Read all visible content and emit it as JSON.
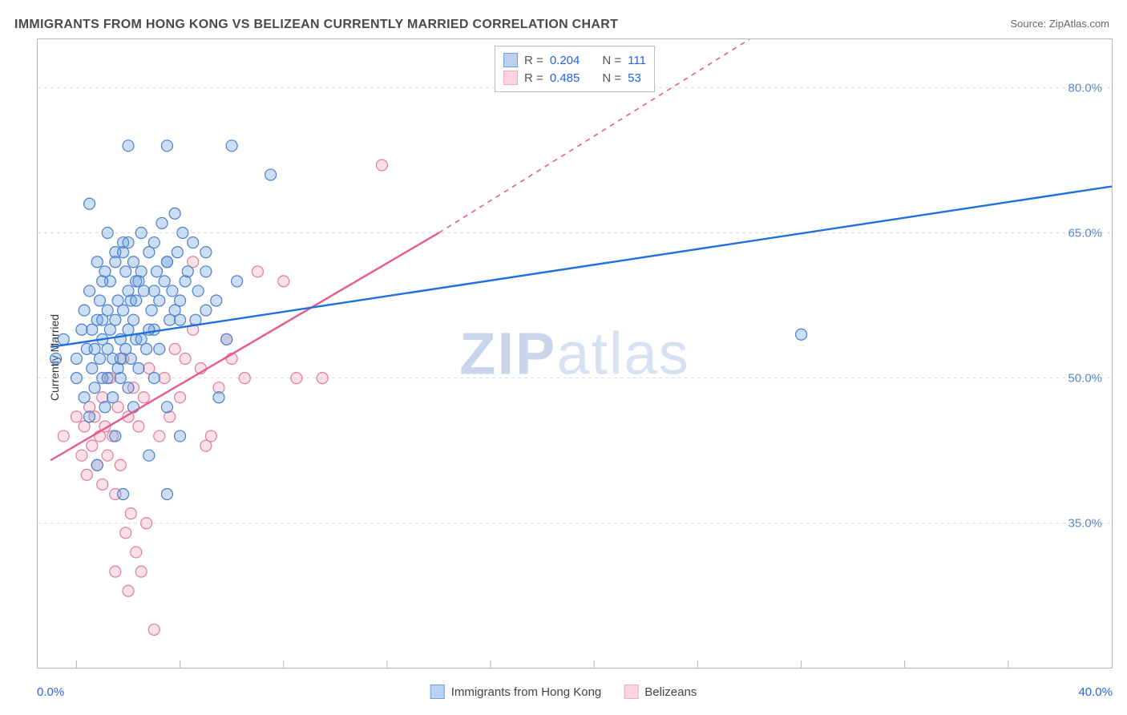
{
  "title": "IMMIGRANTS FROM HONG KONG VS BELIZEAN CURRENTLY MARRIED CORRELATION CHART",
  "source": "Source: ZipAtlas.com",
  "watermark": {
    "bold": "ZIP",
    "light": "atlas"
  },
  "yaxis": {
    "label": "Currently Married"
  },
  "xaxis": {
    "min_label": "0.0%",
    "max_label": "40.0%"
  },
  "chart": {
    "type": "scatter",
    "background_color": "#ffffff",
    "grid_color": "#d9d9d9",
    "axis_color": "#b6b6b6",
    "xlim": [
      -1.5,
      40.0
    ],
    "ylim": [
      20.0,
      85.0
    ],
    "yticks": [
      35.0,
      50.0,
      65.0,
      80.0
    ],
    "ytick_labels": [
      "35.0%",
      "50.0%",
      "65.0%",
      "80.0%"
    ],
    "ytick_color": "#5b86c7",
    "xticks": [
      0,
      4,
      8,
      12,
      16,
      20,
      24,
      28,
      32,
      36
    ],
    "marker_radius": 7,
    "marker_fill_opacity": 0.35,
    "marker_stroke_width": 1.2,
    "series": [
      {
        "name": "Immigrants from Hong Kong",
        "color": "#6ca0e0",
        "stroke": "#4a7fc9",
        "line_color": "#1f6fe0",
        "r": 0.204,
        "n": 111,
        "trend": {
          "x1": -1.0,
          "y1": 53.2,
          "x2": 40.0,
          "y2": 69.8
        },
        "points": [
          [
            -0.8,
            52
          ],
          [
            -0.5,
            54
          ],
          [
            0,
            50
          ],
          [
            0,
            52
          ],
          [
            0.2,
            55
          ],
          [
            0.3,
            48
          ],
          [
            0.3,
            57
          ],
          [
            0.4,
            53
          ],
          [
            0.5,
            59
          ],
          [
            0.5,
            46
          ],
          [
            0.6,
            51
          ],
          [
            0.6,
            55
          ],
          [
            0.7,
            53
          ],
          [
            0.7,
            49
          ],
          [
            0.8,
            62
          ],
          [
            0.8,
            56
          ],
          [
            0.9,
            52
          ],
          [
            0.9,
            58
          ],
          [
            1.0,
            50
          ],
          [
            1.0,
            54
          ],
          [
            1.1,
            61
          ],
          [
            1.1,
            47
          ],
          [
            1.2,
            57
          ],
          [
            1.2,
            53
          ],
          [
            1.3,
            55
          ],
          [
            1.3,
            60
          ],
          [
            1.4,
            52
          ],
          [
            1.4,
            48
          ],
          [
            1.5,
            63
          ],
          [
            1.5,
            56
          ],
          [
            1.6,
            51
          ],
          [
            1.6,
            58
          ],
          [
            1.7,
            54
          ],
          [
            1.7,
            50
          ],
          [
            1.8,
            64
          ],
          [
            1.8,
            57
          ],
          [
            1.9,
            53
          ],
          [
            1.9,
            61
          ],
          [
            2.0,
            55
          ],
          [
            2.0,
            49
          ],
          [
            2.1,
            58
          ],
          [
            2.1,
            52
          ],
          [
            2.2,
            62
          ],
          [
            2.2,
            56
          ],
          [
            2.3,
            60
          ],
          [
            2.3,
            54
          ],
          [
            2.4,
            51
          ],
          [
            2.5,
            65
          ],
          [
            2.6,
            59
          ],
          [
            2.7,
            53
          ],
          [
            2.8,
            63
          ],
          [
            2.9,
            57
          ],
          [
            3.0,
            64
          ],
          [
            3.0,
            55
          ],
          [
            3.1,
            61
          ],
          [
            3.2,
            58
          ],
          [
            3.3,
            66
          ],
          [
            3.4,
            60
          ],
          [
            3.5,
            62
          ],
          [
            3.6,
            56
          ],
          [
            3.7,
            59
          ],
          [
            3.8,
            67
          ],
          [
            3.9,
            63
          ],
          [
            4.0,
            58
          ],
          [
            4.1,
            65
          ],
          [
            4.3,
            61
          ],
          [
            4.5,
            64
          ],
          [
            4.7,
            59
          ],
          [
            5.0,
            57
          ],
          [
            5.0,
            63
          ],
          [
            0.5,
            68
          ],
          [
            2.0,
            74
          ],
          [
            3.5,
            74
          ],
          [
            6.0,
            74
          ],
          [
            7.5,
            71
          ],
          [
            1.8,
            38
          ],
          [
            3.5,
            38
          ],
          [
            0.8,
            41
          ],
          [
            1.5,
            44
          ],
          [
            2.2,
            47
          ],
          [
            2.0,
            59
          ],
          [
            2.5,
            54
          ],
          [
            1.2,
            50
          ],
          [
            1.0,
            56
          ],
          [
            1.7,
            52
          ],
          [
            2.3,
            58
          ],
          [
            2.8,
            55
          ],
          [
            3.2,
            53
          ],
          [
            3.8,
            57
          ],
          [
            4.2,
            60
          ],
          [
            4.6,
            56
          ],
          [
            5.0,
            61
          ],
          [
            5.4,
            58
          ],
          [
            5.8,
            54
          ],
          [
            6.2,
            60
          ],
          [
            3.0,
            50
          ],
          [
            3.5,
            47
          ],
          [
            1.0,
            60
          ],
          [
            1.5,
            62
          ],
          [
            2.0,
            64
          ],
          [
            2.5,
            61
          ],
          [
            3.0,
            59
          ],
          [
            3.5,
            62
          ],
          [
            4.0,
            56
          ],
          [
            1.2,
            65
          ],
          [
            1.8,
            63
          ],
          [
            2.4,
            60
          ],
          [
            5.5,
            48
          ],
          [
            4.0,
            44
          ],
          [
            2.8,
            42
          ],
          [
            28.0,
            54.5
          ]
        ]
      },
      {
        "name": "Belizeans",
        "color": "#f2a8bb",
        "stroke": "#e07b96",
        "line_color": "#e85a8a",
        "r": 0.485,
        "n": 53,
        "trend": {
          "x1": -1.0,
          "y1": 41.5,
          "x2": 14.0,
          "y2": 65.0
        },
        "trend_dashed": {
          "x1": 14.0,
          "y1": 65.0,
          "x2": 26.0,
          "y2": 85.0
        },
        "points": [
          [
            -0.5,
            44
          ],
          [
            0,
            46
          ],
          [
            0.2,
            42
          ],
          [
            0.3,
            45
          ],
          [
            0.4,
            40
          ],
          [
            0.5,
            47
          ],
          [
            0.6,
            43
          ],
          [
            0.7,
            46
          ],
          [
            0.8,
            41
          ],
          [
            0.9,
            44
          ],
          [
            1.0,
            48
          ],
          [
            1.0,
            39
          ],
          [
            1.1,
            45
          ],
          [
            1.2,
            42
          ],
          [
            1.3,
            50
          ],
          [
            1.4,
            44
          ],
          [
            1.5,
            38
          ],
          [
            1.6,
            47
          ],
          [
            1.7,
            41
          ],
          [
            1.8,
            52
          ],
          [
            1.9,
            34
          ],
          [
            2.0,
            46
          ],
          [
            2.1,
            36
          ],
          [
            2.2,
            49
          ],
          [
            2.3,
            32
          ],
          [
            2.4,
            45
          ],
          [
            2.5,
            30
          ],
          [
            2.6,
            48
          ],
          [
            2.7,
            35
          ],
          [
            2.8,
            51
          ],
          [
            3.0,
            24
          ],
          [
            3.2,
            44
          ],
          [
            3.4,
            50
          ],
          [
            3.6,
            46
          ],
          [
            3.8,
            53
          ],
          [
            4.0,
            48
          ],
          [
            4.2,
            52
          ],
          [
            4.5,
            55
          ],
          [
            4.8,
            51
          ],
          [
            5.0,
            43
          ],
          [
            5.2,
            44
          ],
          [
            5.5,
            49
          ],
          [
            5.8,
            54
          ],
          [
            6.0,
            52
          ],
          [
            6.5,
            50
          ],
          [
            7.0,
            61
          ],
          [
            8.0,
            60
          ],
          [
            8.5,
            50
          ],
          [
            9.5,
            50
          ],
          [
            2.0,
            28
          ],
          [
            1.5,
            30
          ],
          [
            11.8,
            72
          ],
          [
            4.5,
            62
          ]
        ]
      }
    ]
  },
  "top_legend": {
    "rows": [
      {
        "swatch_fill": "#b9d2f3",
        "swatch_stroke": "#6ca0e0",
        "r_label": "R =",
        "r_value": "0.204",
        "n_label": "N =",
        "n_value": "111"
      },
      {
        "swatch_fill": "#fbd5df",
        "swatch_stroke": "#f2a8bb",
        "r_label": "R =",
        "r_value": "0.485",
        "n_label": "N =",
        "n_value": "53"
      }
    ]
  },
  "bottom_legend": {
    "items": [
      {
        "swatch_fill": "#b9d2f3",
        "swatch_stroke": "#6ca0e0",
        "label": "Immigrants from Hong Kong"
      },
      {
        "swatch_fill": "#fbd5df",
        "swatch_stroke": "#f2a8bb",
        "label": "Belizeans"
      }
    ]
  }
}
